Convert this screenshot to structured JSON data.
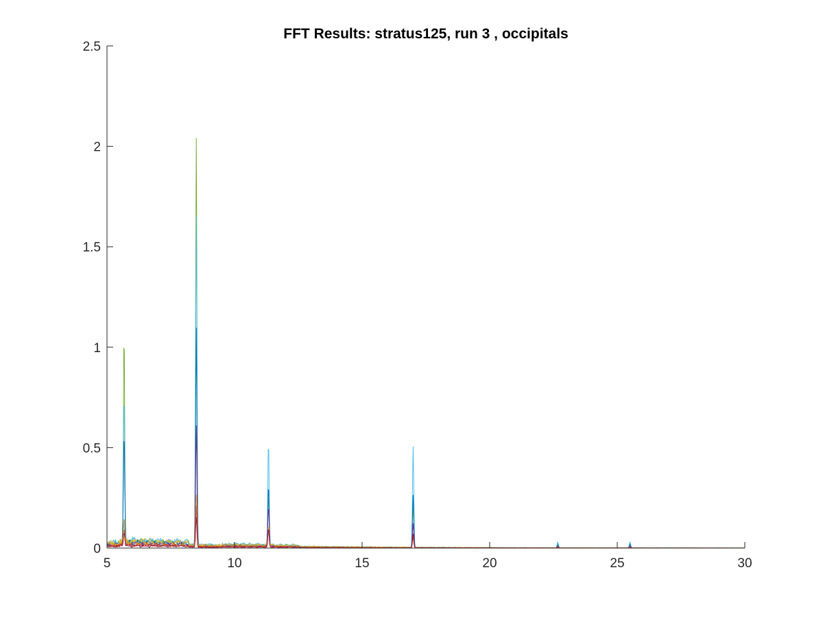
{
  "chart_data": {
    "type": "line",
    "title": "FFT Results: stratus125, run 3 , occipitals",
    "xlabel": "",
    "ylabel": "",
    "xlim": [
      5,
      30
    ],
    "ylim": [
      0,
      2.5
    ],
    "xticks": [
      5,
      10,
      15,
      20,
      25,
      30
    ],
    "xtick_labels": [
      "5",
      "10",
      "15",
      "20",
      "25",
      "30"
    ],
    "yticks": [
      0,
      0.5,
      1,
      1.5,
      2,
      2.5
    ],
    "ytick_labels": [
      "0",
      "0.5",
      "1",
      "1.5",
      "2",
      "2.5"
    ],
    "grid": false,
    "legend": "none",
    "series": [
      {
        "color": "#77ac30",
        "peaks": [
          [
            5.67,
            1.03
          ],
          [
            8.5,
            2.02
          ],
          [
            11.33,
            0.25
          ],
          [
            17.0,
            0.2
          ],
          [
            22.67,
            0.02
          ],
          [
            25.5,
            0.02
          ]
        ],
        "baseline": 0.03
      },
      {
        "color": "#4dbeee",
        "peaks": [
          [
            5.67,
            0.7
          ],
          [
            8.5,
            1.63
          ],
          [
            11.33,
            0.52
          ],
          [
            17.0,
            0.5
          ],
          [
            22.67,
            0.03
          ],
          [
            25.5,
            0.03
          ]
        ],
        "baseline": 0.035
      },
      {
        "color": "#0072bd",
        "peaks": [
          [
            5.67,
            0.55
          ],
          [
            8.5,
            1.08
          ],
          [
            11.33,
            0.3
          ],
          [
            17.0,
            0.26
          ],
          [
            22.67,
            0.015
          ],
          [
            25.5,
            0.02
          ]
        ],
        "baseline": 0.025
      },
      {
        "color": "#7e2f8e",
        "peaks": [
          [
            5.67,
            0.12
          ],
          [
            8.5,
            0.6
          ],
          [
            11.33,
            0.2
          ],
          [
            17.0,
            0.12
          ],
          [
            22.67,
            0.01
          ],
          [
            25.5,
            0.01
          ]
        ],
        "baseline": 0.02
      },
      {
        "color": "#edb120",
        "peaks": [
          [
            5.67,
            0.1
          ],
          [
            8.5,
            0.25
          ],
          [
            11.33,
            0.1
          ],
          [
            17.0,
            0.06
          ],
          [
            22.67,
            0.005
          ],
          [
            25.5,
            0.005
          ]
        ],
        "baseline": 0.03
      },
      {
        "color": "#d95319",
        "peaks": [
          [
            5.67,
            0.08
          ],
          [
            8.5,
            0.2
          ],
          [
            11.33,
            0.09
          ],
          [
            17.0,
            0.05
          ],
          [
            22.67,
            0.005
          ],
          [
            25.5,
            0.005
          ]
        ],
        "baseline": 0.015
      },
      {
        "color": "#a2142f",
        "peaks": [
          [
            5.67,
            0.07
          ],
          [
            8.5,
            0.15
          ],
          [
            11.33,
            0.09
          ],
          [
            17.0,
            0.07
          ],
          [
            22.67,
            0.005
          ],
          [
            25.5,
            0.005
          ]
        ],
        "baseline": 0.01
      }
    ]
  }
}
